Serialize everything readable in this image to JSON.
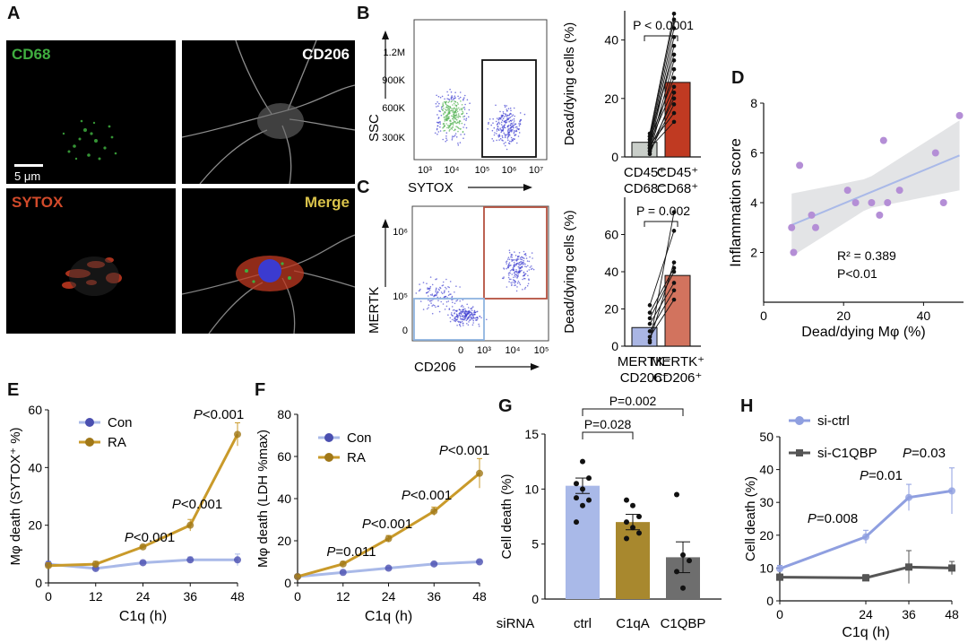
{
  "panels": {
    "A": {
      "label": "A",
      "tiles": [
        {
          "title": "CD68",
          "color": "#3fae3f"
        },
        {
          "title": "CD206",
          "color": "#ffffff"
        },
        {
          "title": "SYTOX",
          "color": "#d24a2a"
        },
        {
          "title": "Merge",
          "color": "#d9c24a"
        }
      ],
      "scalebar": "5 μm"
    },
    "B": {
      "label": "B",
      "flow": {
        "ylabel": "SSC",
        "xlabel": "SYTOX",
        "yticks": [
          "1.2M",
          "900K",
          "600K",
          "300K"
        ],
        "xticks": [
          "10³",
          "10⁴",
          "10⁵",
          "10⁶",
          "10⁷"
        ]
      },
      "pval": "P < 0.0001"
    },
    "C": {
      "label": "C",
      "flow": {
        "ylabel": "MERTK",
        "xlabel": "CD206",
        "yticks": [
          "10⁶",
          "10⁵",
          "0"
        ],
        "xticks": [
          "0",
          "10³",
          "10⁴",
          "10⁵"
        ]
      },
      "pval": "P = 0.002"
    },
    "D": {
      "label": "D",
      "r2": "R² = 0.389",
      "p": "P<0.01"
    },
    "E": {
      "label": "E"
    },
    "F": {
      "label": "F"
    },
    "G": {
      "label": "G",
      "row_label": "siRNA"
    },
    "H": {
      "label": "H"
    }
  },
  "chart_data": [
    {
      "id": "B",
      "type": "bar",
      "ylabel": "Dead/dying cells (%)",
      "ylim": [
        0,
        50
      ],
      "yticks": [
        0,
        20,
        40
      ],
      "categories": [
        "CD45⁺ CD68⁻",
        "CD45⁺ CD68⁺"
      ],
      "values": [
        5,
        25.5
      ],
      "colors": [
        "#c9cec9",
        "#c03a22"
      ],
      "pairs": [
        [
          2,
          30
        ],
        [
          3,
          33
        ],
        [
          4,
          38
        ],
        [
          5,
          41
        ],
        [
          6,
          44
        ],
        [
          7,
          47
        ],
        [
          1,
          22
        ],
        [
          2,
          18
        ],
        [
          4,
          15
        ],
        [
          3,
          12
        ],
        [
          6,
          27
        ],
        [
          5,
          24
        ],
        [
          8,
          49
        ],
        [
          7,
          35
        ],
        [
          3,
          20
        ]
      ],
      "annotation": "P < 0.0001"
    },
    {
      "id": "C",
      "type": "bar",
      "ylabel": "Dead/dying cells (%)",
      "ylim": [
        0,
        80
      ],
      "yticks": [
        0,
        20,
        40,
        60
      ],
      "categories": [
        "MERTK⁻ CD206⁻",
        "MERTK⁺ CD206⁺"
      ],
      "values": [
        10,
        38
      ],
      "colors": [
        "#aab6e4",
        "#d2735e"
      ],
      "pairs": [
        [
          22,
          62
        ],
        [
          18,
          42
        ],
        [
          15,
          40
        ],
        [
          12,
          34
        ],
        [
          8,
          30
        ],
        [
          5,
          25
        ],
        [
          2,
          72
        ],
        [
          3,
          45
        ]
      ],
      "annotation": "P = 0.002"
    },
    {
      "id": "D",
      "type": "scatter",
      "xlabel": "Dead/dying Mφ  (%)",
      "ylabel": "Inflammation score",
      "xlim": [
        0,
        50
      ],
      "ylim": [
        0,
        8
      ],
      "xticks": [
        0,
        20,
        40
      ],
      "yticks": [
        2,
        4,
        6,
        8
      ],
      "points": [
        [
          7,
          3
        ],
        [
          7.5,
          2
        ],
        [
          9,
          5.5
        ],
        [
          12,
          3.5
        ],
        [
          13,
          3
        ],
        [
          21,
          4.5
        ],
        [
          23,
          4
        ],
        [
          27,
          4
        ],
        [
          29,
          3.5
        ],
        [
          30,
          6.5
        ],
        [
          31,
          4
        ],
        [
          34,
          4.5
        ],
        [
          43,
          6
        ],
        [
          45,
          4
        ],
        [
          49,
          7.5
        ]
      ],
      "fit": [
        [
          7,
          3.1
        ],
        [
          49,
          5.9
        ]
      ],
      "annotation": [
        "R² = 0.389",
        "P<0.01"
      ]
    },
    {
      "id": "E",
      "type": "line",
      "xlabel": "C1q (h)",
      "ylabel": "Mφ death (SYTOX⁺ %)",
      "xlim": [
        0,
        48
      ],
      "ylim": [
        0,
        60
      ],
      "x": [
        0,
        12,
        24,
        36,
        48
      ],
      "xticks": [
        0,
        12,
        24,
        36,
        48
      ],
      "yticks": [
        0,
        20,
        40,
        60
      ],
      "series": [
        {
          "name": "Con",
          "values": [
            6.5,
            5,
            7,
            8,
            8
          ],
          "err": [
            1,
            1,
            0.5,
            1,
            2
          ],
          "color": "#a9b9e8",
          "marker": "#4a4fb0"
        },
        {
          "name": "RA",
          "values": [
            6,
            6.5,
            12.5,
            20,
            51.5
          ],
          "err": [
            1,
            1,
            0.5,
            2,
            4
          ],
          "color": "#c99a2a",
          "marker": "#a07818"
        }
      ],
      "annotations": [
        "P<0.001",
        "P<0.001",
        "P<0.001"
      ]
    },
    {
      "id": "F",
      "type": "line",
      "xlabel": "C1q (h)",
      "ylabel": "Mφ death (LDH %max)",
      "xlim": [
        0,
        48
      ],
      "ylim": [
        0,
        80
      ],
      "x": [
        0,
        12,
        24,
        36,
        48
      ],
      "xticks": [
        0,
        12,
        24,
        36,
        48
      ],
      "yticks": [
        0,
        20,
        40,
        60,
        80
      ],
      "series": [
        {
          "name": "Con",
          "values": [
            3,
            5,
            7,
            9,
            10
          ],
          "err": [
            0.5,
            0.5,
            0.5,
            0.5,
            0.5
          ],
          "color": "#a9b9e8",
          "marker": "#4a4fb0"
        },
        {
          "name": "RA",
          "values": [
            3,
            9,
            21,
            34,
            52
          ],
          "err": [
            0.5,
            1,
            1.5,
            2,
            7
          ],
          "color": "#c99a2a",
          "marker": "#a07818"
        }
      ],
      "annotations": [
        "P=0.011",
        "P<0.001",
        "P<0.001",
        "P<0.001"
      ]
    },
    {
      "id": "G",
      "type": "bar",
      "ylabel": "Cell death (%)",
      "ylim": [
        0,
        15
      ],
      "yticks": [
        0,
        5,
        10,
        15
      ],
      "categories": [
        "ctrl",
        "C1qA",
        "C1QBP"
      ],
      "values": [
        10.3,
        7,
        3.8
      ],
      "err": [
        0.7,
        0.7,
        1.4
      ],
      "colors": [
        "#a9b9e8",
        "#a8882e",
        "#6e6e6e"
      ],
      "points": [
        [
          9.2,
          12.5,
          11,
          10.5,
          10,
          9,
          7,
          8.5
        ],
        [
          9,
          8.5,
          7.5,
          7,
          6.5,
          6,
          5.5
        ],
        [
          9.5,
          4,
          3.5,
          2.5,
          1
        ]
      ],
      "annotations": [
        "P=0.028",
        "P=0.002"
      ]
    },
    {
      "id": "H",
      "type": "line",
      "xlabel": "C1q (h)",
      "ylabel": "Cell death (%)",
      "xlim": [
        0,
        48
      ],
      "ylim": [
        0,
        50
      ],
      "x": [
        0,
        24,
        36,
        48
      ],
      "xticks": [
        0,
        24,
        36,
        48
      ],
      "yticks": [
        0,
        10,
        20,
        30,
        40,
        50
      ],
      "series": [
        {
          "name": "si-ctrl",
          "values": [
            9.8,
            19.5,
            31.5,
            33.5
          ],
          "err": [
            1,
            2,
            4,
            7
          ],
          "color": "#8f9fe0",
          "marker": "#8f9fe0"
        },
        {
          "name": "si-C1QBP",
          "values": [
            7.2,
            7,
            10.3,
            10
          ],
          "err": [
            1,
            1,
            5,
            2
          ],
          "color": "#555555",
          "marker": "#555555"
        }
      ],
      "annotations": [
        "P=0.008",
        "P=0.01",
        "P=0.03"
      ]
    }
  ]
}
